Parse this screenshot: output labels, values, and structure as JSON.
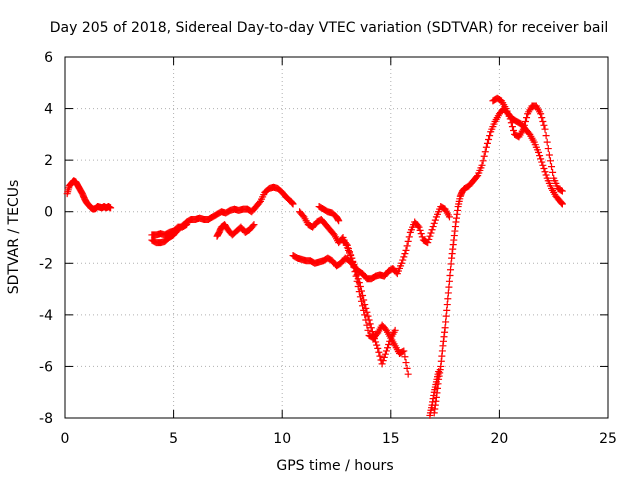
{
  "chart_data": {
    "type": "scatter",
    "title": "Day 205 of 2018, Sidereal Day-to-day VTEC variation (SDTVAR) for receiver bail",
    "xlabel": "GPS time / hours",
    "ylabel": "SDTVAR / TECUs",
    "xlim": [
      0,
      25
    ],
    "ylim": [
      -8,
      6
    ],
    "xticks": [
      0,
      5,
      10,
      15,
      20,
      25
    ],
    "yticks": [
      -8,
      -6,
      -4,
      -2,
      0,
      2,
      4,
      6
    ],
    "xtick_labels": [
      "0",
      "5",
      "10",
      "15",
      "20",
      "25"
    ],
    "ytick_labels": [
      "-8",
      "-6",
      "-4",
      "-2",
      "0",
      "2",
      "4",
      "6"
    ],
    "grid": true,
    "marker": "plus",
    "color": "#ff0000",
    "series": [
      {
        "x": [
          0.1,
          0.2,
          0.3,
          0.4,
          0.5,
          0.6,
          0.7,
          0.8,
          0.9,
          1.0,
          1.1,
          1.2,
          1.3,
          1.4,
          1.5,
          1.6,
          1.7,
          1.8,
          1.9,
          2.0,
          2.1
        ],
        "y": [
          0.7,
          1.0,
          1.1,
          1.2,
          1.15,
          1.0,
          0.85,
          0.7,
          0.5,
          0.35,
          0.25,
          0.15,
          0.1,
          0.12,
          0.2,
          0.18,
          0.15,
          0.2,
          0.15,
          0.2,
          0.15
        ]
      },
      {
        "x": [
          4.0,
          4.2,
          4.4,
          4.6,
          4.8,
          5.0,
          5.2,
          5.4,
          5.6,
          5.8,
          6.0,
          6.2,
          6.4,
          6.6,
          6.8,
          7.0,
          7.2,
          7.4,
          7.6,
          7.8,
          8.0,
          8.2,
          8.4,
          8.6,
          8.8,
          9.0,
          9.2,
          9.4,
          9.6,
          9.8,
          10.0,
          10.2,
          10.4,
          10.5
        ],
        "y": [
          -1.1,
          -1.2,
          -1.2,
          -1.15,
          -1.0,
          -0.9,
          -0.7,
          -0.55,
          -0.4,
          -0.3,
          -0.3,
          -0.25,
          -0.3,
          -0.3,
          -0.2,
          -0.1,
          0.0,
          -0.05,
          0.05,
          0.1,
          0.05,
          0.1,
          0.1,
          0.0,
          0.2,
          0.4,
          0.75,
          0.9,
          0.95,
          0.9,
          0.75,
          0.55,
          0.4,
          0.3
        ]
      },
      {
        "x": [
          4.0,
          4.2,
          4.4,
          4.6,
          4.8,
          5.0,
          5.2,
          5.4,
          5.6
        ],
        "y": [
          -0.9,
          -0.9,
          -0.85,
          -0.9,
          -0.8,
          -0.75,
          -0.6,
          -0.6,
          -0.5
        ]
      },
      {
        "x": [
          7.0,
          7.1,
          7.2,
          7.35,
          7.5,
          7.7,
          7.9,
          8.1,
          8.3,
          8.5,
          8.7
        ],
        "y": [
          -0.95,
          -0.8,
          -0.6,
          -0.5,
          -0.7,
          -0.9,
          -0.75,
          -0.6,
          -0.8,
          -0.7,
          -0.5
        ]
      },
      {
        "x": [
          10.5,
          10.7,
          10.9,
          11.1,
          11.3,
          11.5,
          11.7,
          11.9,
          12.1,
          12.3,
          12.5,
          12.7,
          12.9,
          13.1,
          13.3,
          13.5,
          13.7,
          13.9,
          14.1,
          14.3,
          14.5,
          14.7,
          14.9,
          15.1,
          15.3,
          15.5,
          15.7,
          15.9,
          16.1,
          16.3,
          16.5,
          16.7,
          16.9,
          17.1,
          17.3,
          17.5,
          17.7
        ],
        "y": [
          -1.7,
          -1.8,
          -1.85,
          -1.9,
          -1.9,
          -2.0,
          -1.95,
          -1.9,
          -1.8,
          -1.9,
          -2.1,
          -2.0,
          -1.8,
          -1.9,
          -2.1,
          -2.3,
          -2.4,
          -2.6,
          -2.6,
          -2.5,
          -2.45,
          -2.5,
          -2.3,
          -2.2,
          -2.4,
          -2.0,
          -1.5,
          -0.8,
          -0.4,
          -0.6,
          -1.1,
          -1.2,
          -0.7,
          -0.2,
          0.2,
          0.1,
          -0.2
        ]
      },
      {
        "x": [
          10.8,
          11.0,
          11.2,
          11.4,
          11.6,
          11.8,
          12.0,
          12.2,
          12.4,
          12.6,
          12.8,
          13.0,
          13.2,
          13.4,
          13.6,
          13.8,
          14.0,
          14.2,
          14.4,
          14.6,
          14.8,
          15.0,
          15.2,
          15.4,
          15.6,
          15.8
        ],
        "y": [
          0.0,
          -0.2,
          -0.5,
          -0.6,
          -0.4,
          -0.3,
          -0.5,
          -0.7,
          -0.9,
          -1.2,
          -1.0,
          -1.4,
          -1.8,
          -2.5,
          -3.3,
          -4.0,
          -4.8,
          -4.9,
          -4.7,
          -4.4,
          -4.6,
          -4.9,
          -5.2,
          -5.5,
          -5.4,
          -6.3
        ]
      },
      {
        "x": [
          11.7,
          11.9,
          12.1,
          12.3,
          12.5,
          12.6
        ],
        "y": [
          0.2,
          0.1,
          0.0,
          -0.05,
          -0.2,
          -0.35
        ]
      },
      {
        "x": [
          12.8,
          13.0,
          13.2,
          13.4,
          13.6,
          13.8,
          14.0,
          14.2,
          14.4,
          14.6,
          14.8,
          15.0,
          15.2
        ],
        "y": [
          -1.1,
          -1.3,
          -1.8,
          -2.3,
          -2.9,
          -3.6,
          -4.2,
          -4.8,
          -5.3,
          -5.9,
          -5.4,
          -4.9,
          -4.6
        ]
      },
      {
        "x": [
          17.0,
          17.1,
          17.2,
          17.3,
          17.4,
          17.5,
          17.6,
          17.7,
          17.8,
          17.9,
          18.0,
          18.1,
          18.2,
          18.3,
          18.4,
          18.6,
          18.8,
          19.0,
          19.2,
          19.4,
          19.6,
          19.8,
          20.0,
          20.2,
          20.4,
          20.6,
          20.8,
          21.0,
          21.2,
          21.4,
          21.6,
          21.8,
          22.0,
          22.2,
          22.4,
          22.6,
          22.8,
          22.9
        ],
        "y": [
          -7.8,
          -7.2,
          -6.5,
          -6.0,
          -5.2,
          -4.5,
          -3.6,
          -2.7,
          -1.8,
          -1.1,
          -0.4,
          0.2,
          0.6,
          0.8,
          0.9,
          1.0,
          1.2,
          1.4,
          1.8,
          2.5,
          3.1,
          3.5,
          3.8,
          4.0,
          3.8,
          3.6,
          3.5,
          3.4,
          3.2,
          3.0,
          2.7,
          2.3,
          1.8,
          1.3,
          0.9,
          0.6,
          0.4,
          0.3
        ]
      },
      {
        "x": [
          19.7,
          19.9,
          20.1,
          20.3,
          20.5,
          20.7,
          20.9,
          21.1,
          21.3,
          21.5,
          21.7,
          21.9,
          22.1,
          22.3,
          22.5,
          22.7,
          22.9
        ],
        "y": [
          4.3,
          4.4,
          4.3,
          4.0,
          3.6,
          3.0,
          2.9,
          3.2,
          3.8,
          4.1,
          4.1,
          3.8,
          3.2,
          2.2,
          1.3,
          0.9,
          0.8
        ]
      },
      {
        "x": [
          16.8,
          16.9,
          17.0,
          17.1,
          17.2
        ],
        "y": [
          -7.9,
          -7.5,
          -7.0,
          -6.6,
          -6.2
        ]
      }
    ]
  }
}
